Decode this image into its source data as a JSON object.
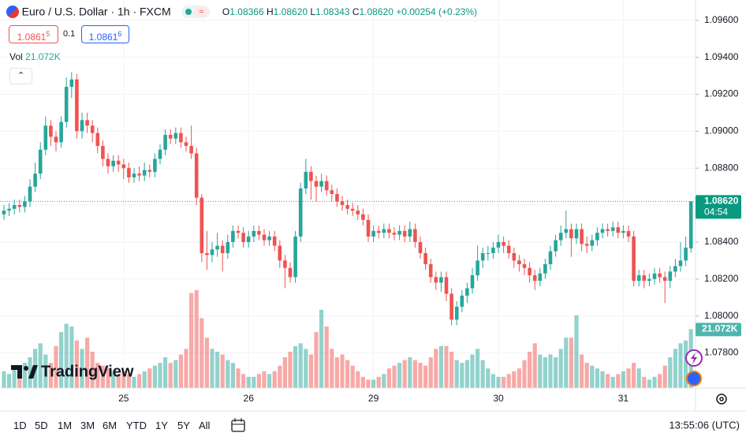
{
  "header": {
    "symbol": "Euro / U.S. Dollar · 1h · FXCM",
    "ohlc": [
      {
        "k": "O",
        "v": "1.08366"
      },
      {
        "k": "H",
        "v": "1.08620"
      },
      {
        "k": "L",
        "v": "1.08343"
      },
      {
        "k": "C",
        "v": "1.08620"
      }
    ],
    "change": "+0.00254 (+0.23%)"
  },
  "trade": {
    "sell": "1.0861",
    "sell_pip": "5",
    "spread": "0.1",
    "buy": "1.0861",
    "buy_pip": "6"
  },
  "volume_legend": "Vol",
  "logo": "TradingView",
  "timeframes": [
    "1D",
    "5D",
    "1M",
    "3M",
    "6M",
    "YTD",
    "1Y",
    "5Y",
    "All"
  ],
  "clock": "13:55:06 (UTC)",
  "chart_data": {
    "type": "candlestick",
    "categories": [
      null,
      null,
      null,
      null,
      null,
      null,
      null,
      null,
      null,
      null,
      null,
      null,
      null,
      null,
      null,
      null,
      null,
      null,
      null,
      null,
      null,
      null,
      null,
      "25",
      null,
      null,
      null,
      null,
      null,
      null,
      null,
      null,
      null,
      null,
      null,
      null,
      null,
      null,
      null,
      null,
      null,
      null,
      null,
      null,
      null,
      null,
      null,
      "26",
      null,
      null,
      null,
      null,
      null,
      null,
      null,
      null,
      null,
      null,
      null,
      null,
      null,
      null,
      null,
      null,
      null,
      null,
      null,
      null,
      null,
      null,
      null,
      "29",
      null,
      null,
      null,
      null,
      null,
      null,
      null,
      null,
      null,
      null,
      null,
      null,
      null,
      null,
      null,
      null,
      null,
      null,
      null,
      null,
      null,
      null,
      null,
      "30",
      null,
      null,
      null,
      null,
      null,
      null,
      null,
      null,
      null,
      null,
      null,
      null,
      null,
      null,
      null,
      null,
      null,
      null,
      null,
      null,
      null,
      null,
      null,
      "31",
      null,
      null,
      null,
      null,
      null,
      null,
      null,
      null,
      null,
      null,
      null,
      null,
      null
    ],
    "open": [
      1.0855,
      1.0857,
      1.0858,
      1.086,
      1.0859,
      1.0862,
      1.087,
      1.0877,
      1.089,
      1.0903,
      1.0897,
      1.0894,
      1.0905,
      1.0924,
      1.0928,
      1.09,
      1.0906,
      1.0903,
      1.0899,
      1.0892,
      1.0885,
      1.0881,
      1.0884,
      1.0882,
      1.088,
      1.0875,
      1.0877,
      1.0876,
      1.0879,
      1.0878,
      1.0885,
      1.089,
      1.0898,
      1.0896,
      1.0899,
      1.0894,
      1.0892,
      1.0888,
      1.0864,
      1.0834,
      1.0833,
      1.0836,
      1.0838,
      1.0834,
      1.084,
      1.0846,
      1.0845,
      1.084,
      1.0843,
      1.0846,
      1.0844,
      1.0841,
      1.0843,
      1.0838,
      1.083,
      1.0826,
      1.0821,
      1.0843,
      1.0869,
      1.0878,
      1.0873,
      1.087,
      1.0873,
      1.0868,
      1.0866,
      1.0862,
      1.086,
      1.0858,
      1.0857,
      1.0855,
      1.0852,
      1.0843,
      1.0846,
      1.0845,
      1.0847,
      1.0845,
      1.0844,
      1.0846,
      1.0843,
      1.0847,
      1.084,
      1.0834,
      1.0828,
      1.0821,
      1.0818,
      1.0821,
      1.0812,
      1.0798,
      1.0805,
      1.0811,
      1.0815,
      1.0822,
      1.083,
      1.0834,
      1.0834,
      1.0837,
      1.084,
      1.0838,
      1.0834,
      1.083,
      1.0828,
      1.0826,
      1.0822,
      1.0819,
      1.0823,
      1.0828,
      1.0835,
      1.0841,
      1.0845,
      1.0847,
      1.0842,
      1.0847,
      1.0839,
      1.0838,
      1.0841,
      1.0845,
      1.0847,
      1.0846,
      1.0848,
      1.0845,
      1.0846,
      1.0843,
      1.0819,
      1.0822,
      1.0819,
      1.082,
      1.0823,
      1.0821,
      1.0819,
      1.0824,
      1.0827,
      1.083,
      1.08366
    ],
    "high": [
      1.086,
      1.0861,
      1.0863,
      1.0863,
      1.0865,
      1.0874,
      1.0883,
      1.0894,
      1.0908,
      1.0906,
      1.09,
      1.0908,
      1.0929,
      1.0932,
      1.0931,
      1.091,
      1.091,
      1.0906,
      1.0902,
      1.0895,
      1.0888,
      1.0887,
      1.0887,
      1.0885,
      1.0883,
      1.088,
      1.0881,
      1.0883,
      1.0882,
      1.0888,
      1.0893,
      1.0901,
      1.0901,
      1.0902,
      1.0902,
      1.0897,
      1.0903,
      1.0891,
      1.0866,
      1.0846,
      1.084,
      1.0845,
      1.0841,
      1.0844,
      1.0849,
      1.0849,
      1.0848,
      1.0846,
      1.0849,
      1.0849,
      1.0847,
      1.0846,
      1.0846,
      1.0841,
      1.0833,
      1.0829,
      1.0846,
      1.0872,
      1.0885,
      1.0881,
      1.0876,
      1.0877,
      1.0876,
      1.0871,
      1.0869,
      1.0865,
      1.0863,
      1.0861,
      1.086,
      1.0858,
      1.0855,
      1.0849,
      1.0849,
      1.085,
      1.085,
      1.0848,
      1.0849,
      1.0849,
      1.0851,
      1.085,
      1.0843,
      1.0837,
      1.0831,
      1.0824,
      1.0824,
      1.0824,
      1.0815,
      1.0808,
      1.0814,
      1.0818,
      1.0826,
      1.0838,
      1.0837,
      1.0838,
      1.084,
      1.0844,
      1.0843,
      1.0841,
      1.0837,
      1.0833,
      1.0831,
      1.0829,
      1.0825,
      1.0826,
      1.0831,
      1.0838,
      1.0844,
      1.0849,
      1.0857,
      1.085,
      1.085,
      1.085,
      1.0843,
      1.0844,
      1.0848,
      1.085,
      1.085,
      1.0851,
      1.0851,
      1.0849,
      1.0849,
      1.0846,
      1.0825,
      1.0825,
      1.0823,
      1.0826,
      1.0826,
      1.0824,
      1.0827,
      1.0831,
      1.084,
      1.0843,
      1.0862
    ],
    "low": [
      1.0852,
      1.0854,
      1.0855,
      1.0856,
      1.0856,
      1.0859,
      1.0867,
      1.0874,
      1.0887,
      1.0892,
      1.0889,
      1.0891,
      1.0902,
      1.0918,
      1.0896,
      1.0896,
      1.0899,
      1.0894,
      1.0888,
      1.0881,
      1.0877,
      1.0878,
      1.0878,
      1.0874,
      1.0872,
      1.0872,
      1.0873,
      1.0873,
      1.0875,
      1.0875,
      1.0882,
      1.0887,
      1.0893,
      1.0893,
      1.0891,
      1.0889,
      1.0885,
      1.086,
      1.0829,
      1.0825,
      1.0829,
      1.0832,
      1.0824,
      1.0831,
      1.0837,
      1.0842,
      1.0837,
      1.0837,
      1.084,
      1.0841,
      1.0838,
      1.0838,
      1.0835,
      1.0826,
      1.0815,
      1.0818,
      1.0818,
      1.084,
      1.0866,
      1.0863,
      1.0862,
      1.0867,
      1.0865,
      1.0862,
      1.0859,
      1.0857,
      1.0855,
      1.0854,
      1.0852,
      1.0849,
      1.084,
      1.084,
      1.0842,
      1.0842,
      1.0842,
      1.0841,
      1.0841,
      1.084,
      1.084,
      1.0837,
      1.0831,
      1.0825,
      1.0818,
      1.0814,
      1.0813,
      1.0808,
      1.0795,
      1.0795,
      1.0802,
      1.0807,
      1.0812,
      1.0819,
      1.0826,
      1.083,
      1.0831,
      1.0834,
      1.0834,
      1.0831,
      1.0826,
      1.0824,
      1.0822,
      1.0818,
      1.0814,
      1.0816,
      1.082,
      1.0825,
      1.0832,
      1.0838,
      1.0842,
      1.0832,
      1.0839,
      1.0835,
      1.0834,
      1.0835,
      1.0838,
      1.0842,
      1.0843,
      1.0843,
      1.0842,
      1.0842,
      1.084,
      1.0816,
      1.0816,
      1.0815,
      1.0816,
      1.0817,
      1.0818,
      1.0807,
      1.0815,
      1.0821,
      1.0824,
      1.0827,
      1.08343
    ],
    "close": [
      1.0857,
      1.0858,
      1.086,
      1.0859,
      1.0862,
      1.087,
      1.0877,
      1.089,
      1.0903,
      1.0897,
      1.0894,
      1.0905,
      1.0924,
      1.0928,
      1.09,
      1.0906,
      1.0903,
      1.0899,
      1.0892,
      1.0885,
      1.0881,
      1.0884,
      1.0882,
      1.088,
      1.0875,
      1.0877,
      1.0876,
      1.0879,
      1.0878,
      1.0885,
      1.089,
      1.0898,
      1.0896,
      1.0899,
      1.0894,
      1.0892,
      1.0888,
      1.0864,
      1.0834,
      1.0833,
      1.0836,
      1.0838,
      1.0834,
      1.084,
      1.0846,
      1.0845,
      1.084,
      1.0843,
      1.0846,
      1.0844,
      1.0841,
      1.0843,
      1.0838,
      1.083,
      1.0826,
      1.0821,
      1.0843,
      1.0869,
      1.0878,
      1.0873,
      1.087,
      1.0873,
      1.0868,
      1.0866,
      1.0862,
      1.086,
      1.0858,
      1.0857,
      1.0855,
      1.0852,
      1.0843,
      1.0846,
      1.0845,
      1.0847,
      1.0845,
      1.0844,
      1.0846,
      1.0843,
      1.0847,
      1.084,
      1.0834,
      1.0828,
      1.0821,
      1.0818,
      1.0821,
      1.0812,
      1.0798,
      1.0805,
      1.0811,
      1.0815,
      1.0822,
      1.083,
      1.0834,
      1.0834,
      1.0837,
      1.084,
      1.0838,
      1.0834,
      1.083,
      1.0828,
      1.0826,
      1.0822,
      1.0819,
      1.0823,
      1.0828,
      1.0835,
      1.0841,
      1.0845,
      1.0847,
      1.0842,
      1.0847,
      1.0839,
      1.0838,
      1.0841,
      1.0845,
      1.0847,
      1.0846,
      1.0848,
      1.0845,
      1.0846,
      1.0843,
      1.0819,
      1.0822,
      1.0819,
      1.082,
      1.0823,
      1.0821,
      1.0819,
      1.0824,
      1.0827,
      1.083,
      1.0837,
      1.0862
    ],
    "volume": [
      6000,
      5000,
      7000,
      8000,
      9000,
      11000,
      14000,
      16000,
      12000,
      9000,
      15000,
      20000,
      23000,
      22000,
      17000,
      14000,
      18000,
      13000,
      9000,
      8000,
      7000,
      6000,
      5000,
      6000,
      5000,
      4000,
      5000,
      6000,
      7000,
      8000,
      9000,
      11000,
      9000,
      10000,
      12000,
      14000,
      34000,
      35000,
      25000,
      18000,
      14000,
      13000,
      12000,
      10000,
      9000,
      7000,
      5000,
      4000,
      4000,
      5000,
      6000,
      5000,
      6000,
      8000,
      11000,
      13000,
      15000,
      16000,
      14000,
      12000,
      20000,
      28000,
      22000,
      14000,
      11000,
      12000,
      10000,
      8000,
      6000,
      4000,
      3000,
      3000,
      4000,
      5000,
      7000,
      8000,
      9000,
      10000,
      11000,
      10000,
      9000,
      8000,
      11000,
      14000,
      15000,
      15000,
      13000,
      10000,
      9000,
      10000,
      12000,
      14000,
      10000,
      7000,
      5000,
      4000,
      4000,
      5000,
      6000,
      7000,
      10000,
      13000,
      16000,
      12000,
      11000,
      12000,
      11000,
      14000,
      18000,
      18000,
      26000,
      12000,
      9000,
      8000,
      7000,
      6000,
      5000,
      4000,
      5000,
      6000,
      7000,
      9000,
      7000,
      4000,
      3000,
      4000,
      5000,
      8000,
      11000,
      14000,
      16000,
      17000,
      21072
    ],
    "volume_label": "21.072K",
    "up_color": "#26a69a",
    "down_color": "#ef5350",
    "ylim": [
      1.0761,
      1.0971
    ],
    "yticks": [
      {
        "value": 1.096,
        "label": "1.09600"
      },
      {
        "value": 1.094,
        "label": "1.09400"
      },
      {
        "value": 1.092,
        "label": "1.09200"
      },
      {
        "value": 1.09,
        "label": "1.09000"
      },
      {
        "value": 1.088,
        "label": "1.08800"
      },
      {
        "value": 1.086,
        "label": "1.08600"
      },
      {
        "value": 1.084,
        "label": "1.08400"
      },
      {
        "value": 1.082,
        "label": "1.08200"
      },
      {
        "value": 1.08,
        "label": "1.08000"
      },
      {
        "value": 1.078,
        "label": "1.07800"
      }
    ],
    "last_price": {
      "value": 1.0862,
      "label": "1.08620"
    },
    "countdown": "04:54",
    "grid": true
  }
}
